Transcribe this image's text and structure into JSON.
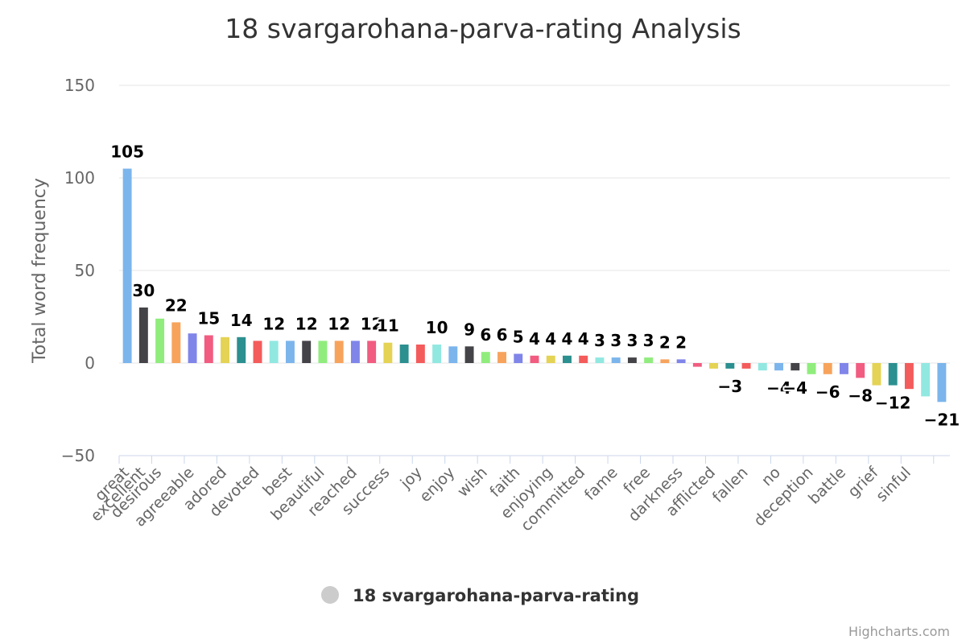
{
  "chart_data": {
    "type": "bar",
    "title": "18 svargarohana-parva-rating Analysis",
    "ylabel": "Total word frequency",
    "ylim": [
      -50,
      150
    ],
    "yticks": [
      -50,
      0,
      50,
      100,
      150
    ],
    "grid": true,
    "legend_position": "bottom-center",
    "series_name": "18 svargarohana-parva-rating",
    "credits": "Highcharts.com",
    "points": [
      {
        "label": "great",
        "value": 105,
        "show_label": true,
        "color": "#7cb5ec"
      },
      {
        "label": "excellent",
        "value": 30,
        "show_label": true,
        "color": "#434348"
      },
      {
        "label": "desirous",
        "value": 24,
        "show_label": false,
        "color": "#90ed7d"
      },
      {
        "label": "",
        "value": 22,
        "show_label": true,
        "color": "#f7a35c"
      },
      {
        "label": "agreeable",
        "value": 16,
        "show_label": false,
        "color": "#8085e9"
      },
      {
        "label": "",
        "value": 15,
        "show_label": true,
        "color": "#f15c80"
      },
      {
        "label": "adored",
        "value": 14,
        "show_label": false,
        "color": "#e4d354"
      },
      {
        "label": "",
        "value": 14,
        "show_label": true,
        "color": "#2b908f"
      },
      {
        "label": "devoted",
        "value": 12,
        "show_label": false,
        "color": "#f45b5b"
      },
      {
        "label": "",
        "value": 12,
        "show_label": true,
        "color": "#91e8e1"
      },
      {
        "label": "best",
        "value": 12,
        "show_label": false,
        "color": "#7cb5ec"
      },
      {
        "label": "",
        "value": 12,
        "show_label": true,
        "color": "#434348"
      },
      {
        "label": "beautiful",
        "value": 12,
        "show_label": false,
        "color": "#90ed7d"
      },
      {
        "label": "",
        "value": 12,
        "show_label": true,
        "color": "#f7a35c"
      },
      {
        "label": "reached",
        "value": 12,
        "show_label": false,
        "color": "#8085e9"
      },
      {
        "label": "",
        "value": 12,
        "show_label": true,
        "color": "#f15c80"
      },
      {
        "label": "success",
        "value": 11,
        "show_label": true,
        "color": "#e4d354"
      },
      {
        "label": "",
        "value": 10,
        "show_label": false,
        "color": "#2b908f"
      },
      {
        "label": "joy",
        "value": 10,
        "show_label": false,
        "color": "#f45b5b"
      },
      {
        "label": "",
        "value": 10,
        "show_label": true,
        "color": "#91e8e1"
      },
      {
        "label": "enjoy",
        "value": 9,
        "show_label": false,
        "color": "#7cb5ec"
      },
      {
        "label": "",
        "value": 9,
        "show_label": true,
        "color": "#434348"
      },
      {
        "label": "wish",
        "value": 6,
        "show_label": true,
        "color": "#90ed7d"
      },
      {
        "label": "",
        "value": 6,
        "show_label": true,
        "color": "#f7a35c"
      },
      {
        "label": "faith",
        "value": 5,
        "show_label": true,
        "color": "#8085e9"
      },
      {
        "label": "",
        "value": 4,
        "show_label": true,
        "color": "#f15c80"
      },
      {
        "label": "enjoying",
        "value": 4,
        "show_label": true,
        "color": "#e4d354"
      },
      {
        "label": "",
        "value": 4,
        "show_label": true,
        "color": "#2b908f"
      },
      {
        "label": "committed",
        "value": 4,
        "show_label": true,
        "color": "#f45b5b"
      },
      {
        "label": "",
        "value": 3,
        "show_label": true,
        "color": "#91e8e1"
      },
      {
        "label": "fame",
        "value": 3,
        "show_label": true,
        "color": "#7cb5ec"
      },
      {
        "label": "",
        "value": 3,
        "show_label": true,
        "color": "#434348"
      },
      {
        "label": "free",
        "value": 3,
        "show_label": true,
        "color": "#90ed7d"
      },
      {
        "label": "",
        "value": 2,
        "show_label": true,
        "color": "#f7a35c"
      },
      {
        "label": "darkness",
        "value": 2,
        "show_label": true,
        "color": "#8085e9"
      },
      {
        "label": "",
        "value": -2,
        "show_label": false,
        "color": "#f15c80"
      },
      {
        "label": "afflicted",
        "value": -3,
        "show_label": false,
        "color": "#e4d354"
      },
      {
        "label": "",
        "value": -3,
        "show_label": true,
        "color": "#2b908f"
      },
      {
        "label": "fallen",
        "value": -3,
        "show_label": false,
        "color": "#f45b5b"
      },
      {
        "label": "",
        "value": -4,
        "show_label": false,
        "color": "#91e8e1"
      },
      {
        "label": "no",
        "value": -4,
        "show_label": true,
        "color": "#7cb5ec"
      },
      {
        "label": "",
        "value": -4,
        "show_label": true,
        "color": "#434348"
      },
      {
        "label": "deception",
        "value": -6,
        "show_label": false,
        "color": "#90ed7d"
      },
      {
        "label": "",
        "value": -6,
        "show_label": true,
        "color": "#f7a35c"
      },
      {
        "label": "battle",
        "value": -6,
        "show_label": false,
        "color": "#8085e9"
      },
      {
        "label": "",
        "value": -8,
        "show_label": true,
        "color": "#f15c80"
      },
      {
        "label": "grief",
        "value": -12,
        "show_label": false,
        "color": "#e4d354"
      },
      {
        "label": "",
        "value": -12,
        "show_label": true,
        "color": "#2b908f"
      },
      {
        "label": "sinful",
        "value": -14,
        "show_label": false,
        "color": "#f45b5b"
      },
      {
        "label": "",
        "value": -18,
        "show_label": false,
        "color": "#91e8e1"
      },
      {
        "label": "",
        "value": -21,
        "show_label": true,
        "color": "#7cb5ec"
      }
    ]
  }
}
